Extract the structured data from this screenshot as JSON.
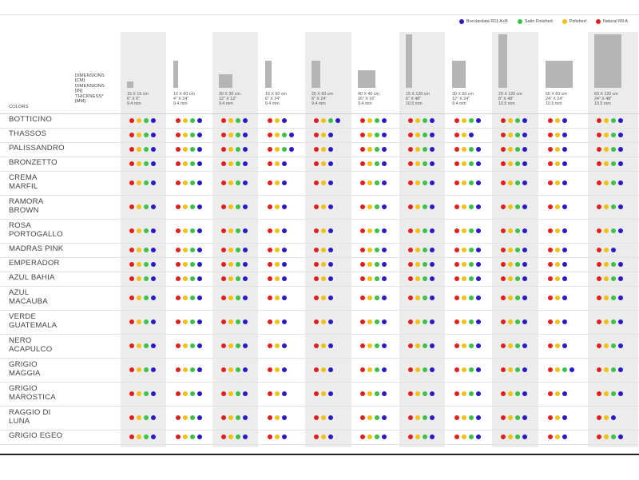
{
  "colors": {
    "blue": "#2a19c8",
    "green": "#38c24a",
    "yellow": "#f2c010",
    "red": "#e21e1e"
  },
  "legend": [
    {
      "label": "Bocciardata R11 A+B",
      "color": "blue"
    },
    {
      "label": "Satin Finished",
      "color": "green"
    },
    {
      "label": "Polished",
      "color": "yellow"
    },
    {
      "label": "Natural R9 A",
      "color": "red"
    }
  ],
  "header": {
    "dim_labels": [
      "DIMENSIONS",
      "[CM]",
      "DIMENSIONS",
      "[IN]",
      "THICKNESS*",
      "[MM]"
    ],
    "colors_label": "COLORS"
  },
  "columns": [
    {
      "cm": "15 X 15 cm",
      "inch": "6\" X 6\"",
      "mm": "9.4 mm",
      "w_ratio": 15,
      "h_ratio": 15
    },
    {
      "cm": "10 X 60 cm",
      "inch": "4\" X 24\"",
      "mm": "9.4 mm",
      "w_ratio": 10,
      "h_ratio": 60
    },
    {
      "cm": "30 X 30 cm",
      "inch": "12\" X 12\"",
      "mm": "9.4 mm",
      "w_ratio": 30,
      "h_ratio": 30
    },
    {
      "cm": "15 X 60 cm",
      "inch": "6\" X 24\"",
      "mm": "9.4 mm",
      "w_ratio": 15,
      "h_ratio": 60
    },
    {
      "cm": "20 X 60 cm",
      "inch": "8\" X 24\"",
      "mm": "9.4 mm",
      "w_ratio": 20,
      "h_ratio": 60
    },
    {
      "cm": "40 X 40 cm",
      "inch": "16\" X 16\"",
      "mm": "9.4 mm",
      "w_ratio": 40,
      "h_ratio": 40
    },
    {
      "cm": "15 X 120 cm",
      "inch": "6\" X 48\"",
      "mm": "10.5 mm",
      "w_ratio": 15,
      "h_ratio": 120
    },
    {
      "cm": "30 X 60 cm",
      "inch": "12\" X 24\"",
      "mm": "9.4 mm",
      "w_ratio": 30,
      "h_ratio": 60
    },
    {
      "cm": "20 X 120 cm",
      "inch": "8\" X 48\"",
      "mm": "10.5 mm",
      "w_ratio": 20,
      "h_ratio": 120
    },
    {
      "cm": "60 X 60 cm",
      "inch": "24\" X 24\"",
      "mm": "10.5 mm",
      "w_ratio": 60,
      "h_ratio": 60
    },
    {
      "cm": "60 X 120 cm",
      "inch": "24\" X 48\"",
      "mm": "10.5 mm",
      "w_ratio": 60,
      "h_ratio": 120
    }
  ],
  "rows": [
    {
      "name": [
        "BOTTICINO"
      ],
      "cells": [
        "rygb",
        "rygb",
        "rygb",
        "ryb",
        "rygb",
        "rygb",
        "rygb",
        "rygb",
        "rygb",
        "ryb",
        "rygb"
      ]
    },
    {
      "name": [
        "THASSOS"
      ],
      "cells": [
        "rygb",
        "rygb",
        "rygb",
        "rygb",
        "ryb",
        "rygb",
        "rygb",
        "ryb",
        "rygb",
        "ryb",
        "rygb"
      ]
    },
    {
      "name": [
        "PALISSANDRO"
      ],
      "cells": [
        "rygb",
        "rygb",
        "rygb",
        "rygb",
        "ryb",
        "rygb",
        "rygb",
        "rygb",
        "rygb",
        "ryb",
        "rygb"
      ]
    },
    {
      "name": [
        "BRONZETTO"
      ],
      "cells": [
        "rygb",
        "rygb",
        "rygb",
        "ryb",
        "ryb",
        "rygb",
        "rygb",
        "rygb",
        "rygb",
        "ryb",
        "rygb"
      ]
    },
    {
      "name": [
        "CREMA",
        "MARFIL"
      ],
      "cells": [
        "rygb",
        "rygb",
        "rygb",
        "ryb",
        "ryb",
        "rygb",
        "rygb",
        "rygb",
        "rygb",
        "ryb",
        "rygb"
      ]
    },
    {
      "name": [
        "RAMORA",
        "BROWN"
      ],
      "cells": [
        "rygb",
        "rygb",
        "rygb",
        "ryb",
        "ryb",
        "rygb",
        "rygb",
        "rygb",
        "rygb",
        "ryb",
        "rygb"
      ]
    },
    {
      "name": [
        "ROSA",
        "PORTOGALLO"
      ],
      "cells": [
        "rygb",
        "rygb",
        "rygb",
        "ryb",
        "ryb",
        "rygb",
        "rygb",
        "rygb",
        "rygb",
        "ryb",
        "rygb"
      ]
    },
    {
      "name": [
        "MADRAS PINK"
      ],
      "cells": [
        "rygb",
        "rygb",
        "rygb",
        "ryb",
        "ryb",
        "rygb",
        "rygb",
        "rygb",
        "rygb",
        "ryb",
        "ryb"
      ]
    },
    {
      "name": [
        "EMPERADOR"
      ],
      "cells": [
        "rygb",
        "rygb",
        "rygb",
        "ryb",
        "ryb",
        "rygb",
        "rygb",
        "rygb",
        "rygb",
        "ryb",
        "rygb"
      ]
    },
    {
      "name": [
        "AZUL BAHIA"
      ],
      "cells": [
        "rygb",
        "rygb",
        "rygb",
        "ryb",
        "ryb",
        "rygb",
        "rygb",
        "rygb",
        "rygb",
        "ryb",
        "rygb"
      ]
    },
    {
      "name": [
        "AZUL",
        "MACAUBA"
      ],
      "cells": [
        "rygb",
        "rygb",
        "rygb",
        "ryb",
        "ryb",
        "rygb",
        "rygb",
        "rygb",
        "rygb",
        "ryb",
        "rygb"
      ]
    },
    {
      "name": [
        "VERDE",
        "GUATEMALA"
      ],
      "cells": [
        "rygb",
        "rygb",
        "rygb",
        "ryb",
        "ryb",
        "rygb",
        "rygb",
        "rygb",
        "rygb",
        "ryb",
        "rygb"
      ]
    },
    {
      "name": [
        "NERO",
        "ACAPULCO"
      ],
      "cells": [
        "rygb",
        "rygb",
        "rygb",
        "ryb",
        "ryb",
        "rygb",
        "rygb",
        "rygb",
        "rygb",
        "ryb",
        "rygb"
      ]
    },
    {
      "name": [
        "GRIGIO",
        "MAGGIA"
      ],
      "cells": [
        "rygb",
        "rygb",
        "rygb",
        "ryb",
        "ryb",
        "rygb",
        "rygb",
        "rygb",
        "rygb",
        "rygb",
        "rygb"
      ]
    },
    {
      "name": [
        "GRIGIO",
        "MAROSTICA"
      ],
      "cells": [
        "rygb",
        "rygb",
        "rygb",
        "ryb",
        "ryb",
        "rygb",
        "rygb",
        "rygb",
        "rygb",
        "ryb",
        "rygb"
      ]
    },
    {
      "name": [
        "RAGGIO DI",
        "LUNA"
      ],
      "cells": [
        "rygb",
        "rygb",
        "rygb",
        "ryb",
        "ryb",
        "rygb",
        "rygb",
        "rygb",
        "rygb",
        "ryb",
        "ryb"
      ]
    },
    {
      "name": [
        "GRIGIO EGEO"
      ],
      "cells": [
        "rygb",
        "rygb",
        "rygb",
        "ryb",
        "ryb",
        "rygb",
        "rygb",
        "rygb",
        "rygb",
        "ryb",
        "rygb"
      ]
    }
  ]
}
